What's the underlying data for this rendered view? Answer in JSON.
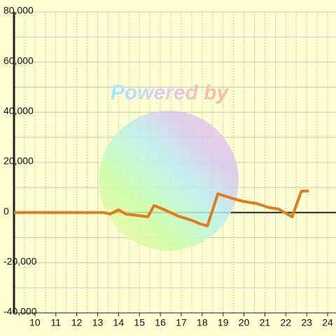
{
  "chart_data": {
    "type": "line",
    "watermark": "Powered by",
    "x": [
      9,
      13.3,
      13.6,
      14.0,
      14.35,
      14.85,
      15.4,
      15.7,
      16.2,
      16.85,
      17.5,
      17.9,
      18.25,
      18.75,
      19.35,
      19.95,
      20.6,
      21.2,
      21.65,
      22.3,
      22.75,
      23.1
    ],
    "series": [
      {
        "color": "#e07c20",
        "values": [
          0,
          0,
          -600,
          1100,
          -600,
          -1100,
          -1700,
          2800,
          1100,
          -1400,
          -3100,
          -4500,
          -5300,
          7500,
          5900,
          4500,
          3600,
          2000,
          1400,
          -1700,
          8600,
          8600
        ]
      }
    ],
    "xlim": [
      9,
      24.4
    ],
    "ylim": [
      -40000,
      80000
    ],
    "xticks": [
      10,
      11,
      12,
      13,
      14,
      15,
      16,
      17,
      18,
      19,
      20,
      21,
      22,
      23,
      24
    ],
    "xminor": [
      9.5,
      10.5,
      11.5,
      12.5,
      13.5,
      14.5,
      15.5,
      16.5,
      17.5,
      18.5,
      19.5,
      20.5,
      21.5,
      22.5,
      23.5
    ],
    "yticks": [
      {
        "value": -40000,
        "label": "-40,000"
      },
      {
        "value": -20000,
        "label": "-20,000"
      },
      0,
      {
        "value": 20000,
        "label": "20,000"
      },
      {
        "value": 40000,
        "label": "40,000"
      },
      {
        "value": 60000,
        "label": "60,000"
      },
      {
        "value": 80000,
        "label": "80,000"
      }
    ],
    "yminor": [
      -30000,
      -10000,
      10000,
      30000,
      50000,
      70000
    ],
    "grid": true
  }
}
